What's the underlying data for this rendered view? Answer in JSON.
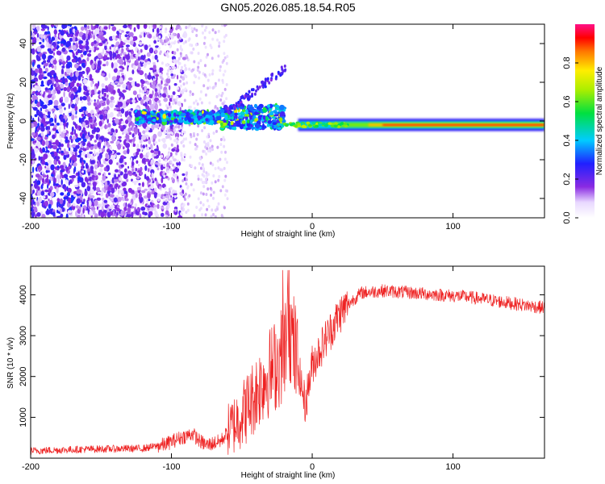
{
  "title": "GN05.2026.085.18.54.R05",
  "colors": {
    "snr_line": "#ee2222",
    "spectrogram_bg": "#ffffff"
  },
  "chart_data": [
    {
      "type": "heatmap",
      "name": "spectrogram",
      "xlabel": "Height of straight line (km)",
      "ylabel": "Frequency (Hz)",
      "xlim": [
        -200,
        165
      ],
      "ylim": [
        -50,
        50
      ],
      "xticks": [
        -200,
        -100,
        0,
        100
      ],
      "xtick_labels": [
        "-200",
        "-100",
        "0",
        "100"
      ],
      "yticks": [
        -40,
        -20,
        0,
        20,
        40
      ],
      "ytick_labels": [
        "-40",
        "-20",
        "0",
        "20",
        "40"
      ],
      "colorbar": {
        "label": "Normalized spectral amplitude",
        "range": [
          0,
          1
        ],
        "ticks": [
          0.0,
          0.2,
          0.4,
          0.6,
          0.8
        ],
        "tick_labels": [
          "0.0",
          "0.2",
          "0.4",
          "0.6",
          "0.8"
        ],
        "colormap": "rainbow (white-violet-blue-cyan-green-yellow-red-magenta)"
      },
      "features": [
        {
          "description": "noise scatter",
          "x_range": [
            -200,
            -110
          ],
          "freq_range": [
            -50,
            50
          ],
          "amplitude": 0.15
        },
        {
          "description": "signal onset",
          "x_range": [
            -125,
            -65
          ],
          "freq_center": 2,
          "amplitude": 0.3
        },
        {
          "description": "diagonal chirp",
          "x_range": [
            -60,
            -18
          ],
          "freq_range": [
            5,
            28
          ],
          "amplitude": 0.2
        },
        {
          "description": "steady carrier",
          "x_range": [
            -10,
            165
          ],
          "freq_center": -2,
          "amplitude": 0.95
        }
      ]
    },
    {
      "type": "line",
      "name": "snr",
      "xlabel": "Height of straight line (km)",
      "ylabel": "SNR (10 * v/v)",
      "xlim": [
        -200,
        165
      ],
      "ylim": [
        0,
        4700
      ],
      "xticks": [
        -200,
        -100,
        0,
        100
      ],
      "xtick_labels": [
        "-200",
        "-100",
        "0",
        "100"
      ],
      "yticks": [
        1000,
        2000,
        3000,
        4000
      ],
      "ytick_labels": [
        "1000",
        "2000",
        "3000",
        "4000"
      ],
      "series": [
        {
          "name": "SNR",
          "x": [
            -200,
            -180,
            -160,
            -140,
            -120,
            -105,
            -95,
            -85,
            -80,
            -75,
            -65,
            -55,
            -45,
            -35,
            -28,
            -22,
            -16,
            -10,
            -5,
            0,
            10,
            20,
            28,
            35,
            50,
            70,
            90,
            110,
            130,
            150,
            165
          ],
          "y": [
            180,
            200,
            220,
            230,
            240,
            330,
            480,
            600,
            420,
            320,
            420,
            850,
            1300,
            1900,
            2200,
            2500,
            3200,
            2200,
            1300,
            2300,
            2950,
            3550,
            3850,
            4050,
            4100,
            4050,
            4000,
            3950,
            3850,
            3750,
            3680
          ]
        }
      ]
    }
  ]
}
